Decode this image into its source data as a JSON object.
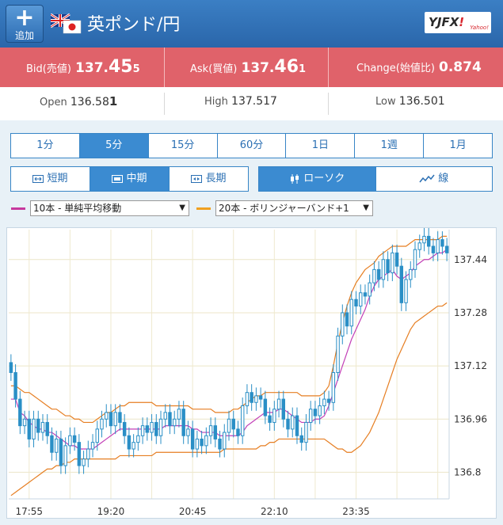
{
  "header": {
    "add_label": "追加",
    "pair_name": "英ポンド/円",
    "logo_text_a": "YJFX",
    "logo_text_b": "!",
    "logo_sub": "Yahoo!"
  },
  "quotes": {
    "bid_label": "Bid(売値)",
    "bid_a": "137.",
    "bid_b": "45",
    "bid_c": "5",
    "ask_label": "Ask(買値)",
    "ask_a": "137.",
    "ask_b": "46",
    "ask_c": "1",
    "change_label": "Change(始値比)",
    "change_value": "0.874"
  },
  "ohl": {
    "open_label": "Open",
    "open_a": "136.58",
    "open_b": "1",
    "high_label": "High",
    "high_value": "137.517",
    "low_label": "Low",
    "low_a": "136.501"
  },
  "timeframes": [
    "1分",
    "5分",
    "15分",
    "60分",
    "1日",
    "1週",
    "1月"
  ],
  "selected_timeframe": "5分",
  "ranges": [
    "短期",
    "中期",
    "長期"
  ],
  "selected_range": "中期",
  "chart_types": [
    "ローソク",
    "線"
  ],
  "selected_chart_type": "ローソク",
  "indicators": {
    "ma_option": "10本 - 単純平均移動",
    "ma_color": "#c7399e",
    "bb_option": "20本 - ボリンジャーバンド+1",
    "bb_color": "#f0a020"
  },
  "colors": {
    "header_blue": "#2f72b7",
    "quote_red": "#e0626a",
    "candle": "#2a8fc6",
    "ma_line": "#c23fb7",
    "band_line": "#e67e22"
  },
  "chart_data": {
    "type": "candlestick",
    "x_ticks": [
      "17:55",
      "19:20",
      "20:45",
      "22:10",
      "23:35"
    ],
    "y_ticks": [
      "136.8",
      "136.96",
      "137.12",
      "137.28",
      "137.44"
    ],
    "ylim": [
      136.72,
      137.53
    ],
    "close": [
      137.1,
      137.02,
      136.94,
      136.96,
      136.9,
      136.96,
      136.92,
      136.95,
      136.91,
      136.86,
      136.9,
      136.82,
      136.88,
      136.91,
      136.89,
      136.82,
      136.84,
      136.87,
      136.89,
      136.93,
      136.96,
      136.98,
      136.94,
      136.98,
      136.95,
      136.91,
      136.87,
      136.89,
      136.91,
      136.94,
      136.92,
      136.95,
      136.91,
      136.96,
      136.98,
      136.94,
      136.96,
      136.99,
      136.91,
      136.93,
      136.87,
      136.9,
      136.88,
      136.91,
      136.94,
      136.9,
      136.87,
      136.92,
      136.96,
      136.93,
      136.91,
      137.0,
      137.04,
      137.01,
      137.03,
      137.02,
      136.97,
      136.95,
      136.99,
      137.02,
      136.96,
      136.93,
      136.97,
      136.91,
      136.89,
      136.95,
      136.99,
      136.97,
      137.0,
      137.02,
      137.01,
      137.1,
      137.21,
      137.28,
      137.24,
      137.32,
      137.3,
      137.34,
      137.33,
      137.37,
      137.41,
      137.38,
      137.44,
      137.4,
      137.46,
      137.42,
      137.31,
      137.38,
      137.41,
      137.47,
      137.49,
      137.51,
      137.48,
      137.46,
      137.5,
      137.48,
      137.46
    ],
    "ma_10": [
      137.02,
      137.02,
      136.98,
      136.97,
      136.95,
      136.94,
      136.93,
      136.93,
      136.92,
      136.92,
      136.91,
      136.9,
      136.89,
      136.88,
      136.88,
      136.87,
      136.87,
      136.87,
      136.87,
      136.88,
      136.89,
      136.9,
      136.91,
      136.92,
      136.93,
      136.93,
      136.93,
      136.93,
      136.93,
      136.93,
      136.93,
      136.93,
      136.93,
      136.93,
      136.94,
      136.94,
      136.94,
      136.94,
      136.94,
      136.94,
      136.93,
      136.93,
      136.92,
      136.92,
      136.92,
      136.92,
      136.91,
      136.91,
      136.91,
      136.91,
      136.91,
      136.92,
      136.94,
      136.95,
      136.96,
      136.97,
      136.98,
      136.98,
      136.98,
      136.99,
      136.99,
      136.98,
      136.97,
      136.96,
      136.95,
      136.95,
      136.95,
      136.96,
      136.96,
      136.97,
      137.0,
      137.04,
      137.08,
      137.12,
      137.16,
      137.2,
      137.23,
      137.26,
      137.29,
      137.33,
      137.36,
      137.38,
      137.39,
      137.4,
      137.41,
      137.39,
      137.38,
      137.39,
      137.4,
      137.42,
      137.43,
      137.44,
      137.44,
      137.45,
      137.46,
      137.46,
      137.47
    ],
    "bb_upper": [
      137.06,
      137.06,
      137.05,
      137.04,
      137.04,
      137.03,
      137.02,
      137.01,
      137.0,
      136.99,
      136.99,
      136.98,
      136.97,
      136.97,
      136.96,
      136.96,
      136.95,
      136.95,
      136.95,
      136.96,
      136.97,
      136.98,
      136.98,
      136.99,
      137.0,
      137.0,
      137.01,
      137.01,
      137.01,
      137.01,
      137.01,
      137.01,
      137.0,
      137.0,
      137.0,
      137.0,
      137.0,
      137.0,
      137.0,
      137.0,
      136.99,
      136.99,
      136.99,
      136.99,
      136.99,
      136.98,
      136.98,
      136.98,
      136.98,
      136.99,
      136.99,
      137.0,
      137.01,
      137.02,
      137.03,
      137.03,
      137.04,
      137.04,
      137.04,
      137.04,
      137.04,
      137.04,
      137.04,
      137.04,
      137.03,
      137.03,
      137.03,
      137.03,
      137.03,
      137.04,
      137.06,
      137.12,
      137.19,
      137.25,
      137.3,
      137.34,
      137.37,
      137.39,
      137.41,
      137.42,
      137.43,
      137.45,
      137.46,
      137.47,
      137.48,
      137.48,
      137.48,
      137.48,
      137.49,
      137.5,
      137.5,
      137.5,
      137.5,
      137.5,
      137.5,
      137.51,
      137.51
    ],
    "bb_lower": [
      136.73,
      136.74,
      136.75,
      136.76,
      136.77,
      136.78,
      136.79,
      136.8,
      136.81,
      136.81,
      136.82,
      136.82,
      136.83,
      136.83,
      136.84,
      136.84,
      136.84,
      136.84,
      136.84,
      136.84,
      136.84,
      136.84,
      136.84,
      136.84,
      136.85,
      136.85,
      136.85,
      136.85,
      136.85,
      136.85,
      136.85,
      136.85,
      136.86,
      136.86,
      136.86,
      136.86,
      136.86,
      136.86,
      136.86,
      136.86,
      136.86,
      136.86,
      136.86,
      136.86,
      136.86,
      136.86,
      136.86,
      136.87,
      136.87,
      136.87,
      136.87,
      136.87,
      136.87,
      136.87,
      136.87,
      136.88,
      136.88,
      136.89,
      136.89,
      136.9,
      136.9,
      136.9,
      136.9,
      136.9,
      136.9,
      136.9,
      136.9,
      136.9,
      136.9,
      136.9,
      136.89,
      136.88,
      136.87,
      136.87,
      136.86,
      136.86,
      136.87,
      136.88,
      136.9,
      136.92,
      136.95,
      136.98,
      137.02,
      137.06,
      137.1,
      137.14,
      137.17,
      137.2,
      137.23,
      137.25,
      137.26,
      137.27,
      137.28,
      137.29,
      137.3,
      137.3,
      137.31
    ]
  }
}
